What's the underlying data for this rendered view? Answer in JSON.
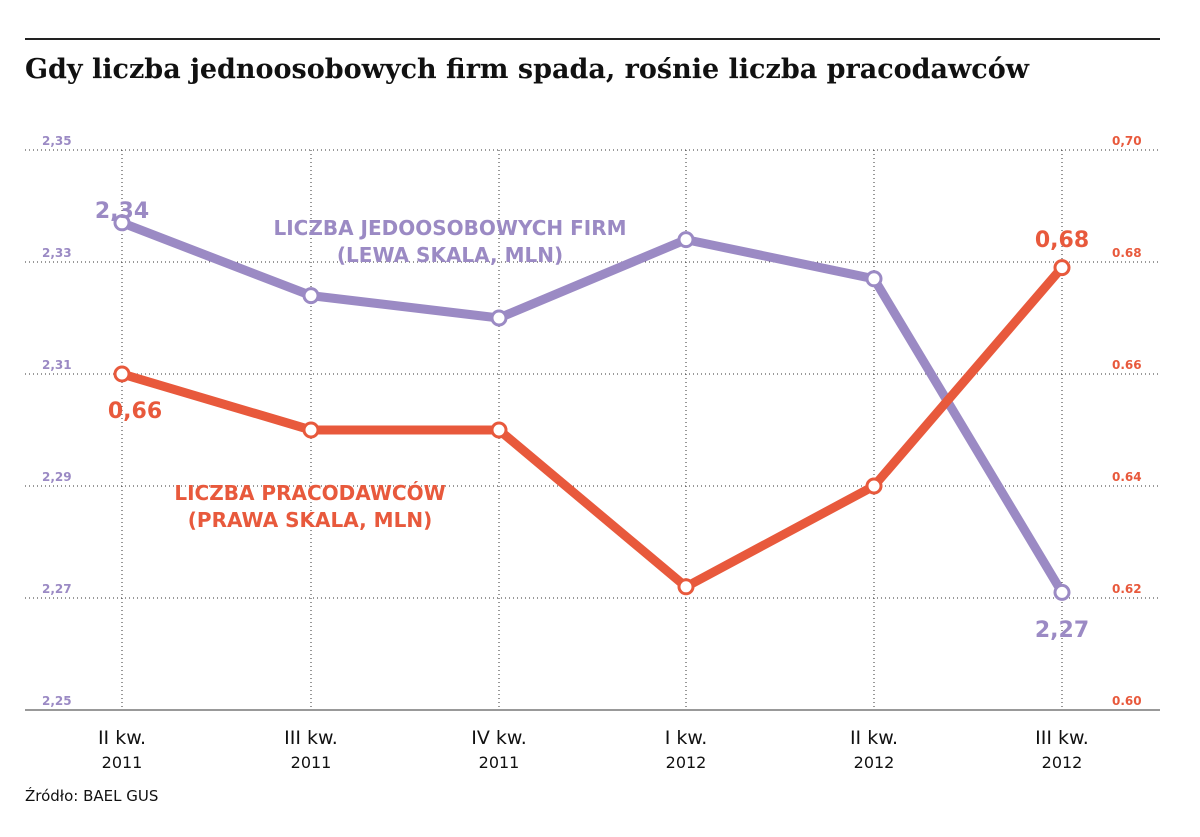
{
  "title": "Gdy liczba jednoosobowych firm spada, rośnie liczba pracodawców",
  "source": "Źródło: BAEL GUS",
  "colors": {
    "purple": "#9b8ac4",
    "red": "#e8593c",
    "grid": "#333333"
  },
  "chart_data": {
    "type": "line",
    "categories": [
      {
        "quarter": "II kw.",
        "year": "2011"
      },
      {
        "quarter": "III kw.",
        "year": "2011"
      },
      {
        "quarter": "IV kw.",
        "year": "2011"
      },
      {
        "quarter": "I kw.",
        "year": "2012"
      },
      {
        "quarter": "II kw.",
        "year": "2012"
      },
      {
        "quarter": "III kw.",
        "year": "2012"
      }
    ],
    "y_left": {
      "ticks": [
        "2,35",
        "2,33",
        "2,31",
        "2,29",
        "2,27",
        "2,25"
      ],
      "ylim": [
        2.25,
        2.35
      ]
    },
    "y_right": {
      "ticks": [
        "0,70",
        "0.68",
        "0.66",
        "0.64",
        "0.62",
        "0.60"
      ],
      "ylim": [
        0.6,
        0.7
      ]
    },
    "grid": "horizontal dotted + vertical dotted",
    "series": [
      {
        "name_lines": [
          "LICZBA JEDOOSOBOWYCH FIRM",
          "(LEWA SKALA, MLN)"
        ],
        "axis": "left",
        "color": "#9b8ac4",
        "values": [
          2.337,
          2.324,
          2.32,
          2.334,
          2.327,
          2.271
        ],
        "labels": [
          {
            "index": 0,
            "text": "2,34"
          },
          {
            "index": 5,
            "text": "2,27"
          }
        ]
      },
      {
        "name_lines": [
          "LICZBA PRACODAWCÓW",
          "(PRAWA SKALA, MLN)"
        ],
        "axis": "right",
        "color": "#e8593c",
        "values": [
          0.66,
          0.65,
          0.65,
          0.622,
          0.64,
          0.679
        ],
        "labels": [
          {
            "index": 0,
            "text": "0,66"
          },
          {
            "index": 5,
            "text": "0,68"
          }
        ]
      }
    ]
  }
}
